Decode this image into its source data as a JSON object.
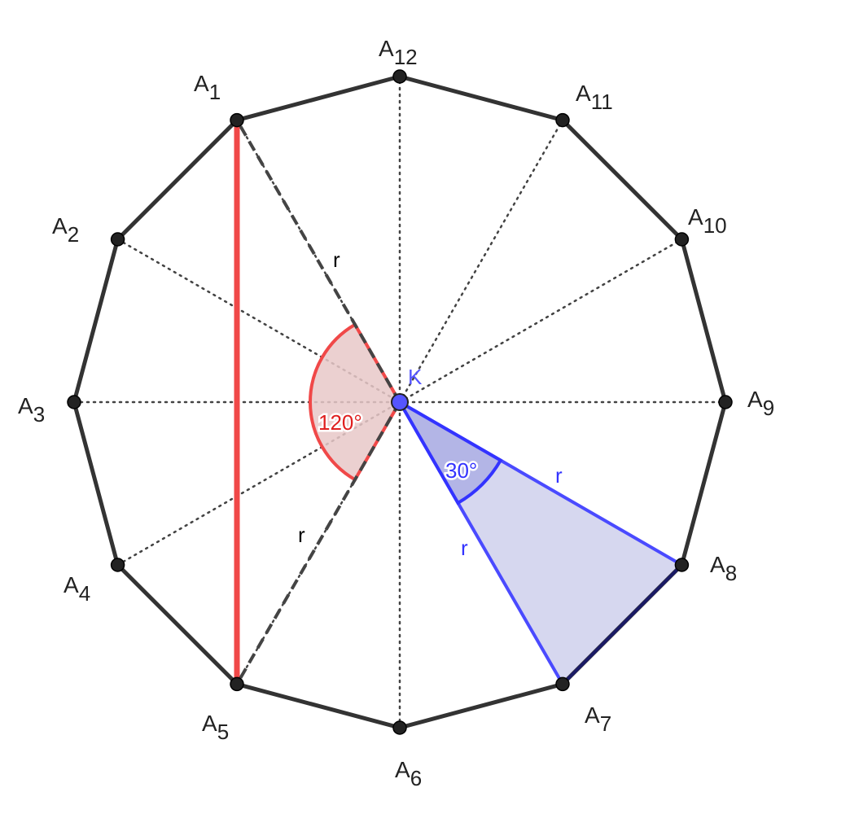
{
  "diagram": {
    "center_label": "K",
    "vertices": [
      {
        "letter": "A",
        "sub": "1"
      },
      {
        "letter": "A",
        "sub": "2"
      },
      {
        "letter": "A",
        "sub": "3"
      },
      {
        "letter": "A",
        "sub": "4"
      },
      {
        "letter": "A",
        "sub": "5"
      },
      {
        "letter": "A",
        "sub": "6"
      },
      {
        "letter": "A",
        "sub": "7"
      },
      {
        "letter": "A",
        "sub": "8"
      },
      {
        "letter": "A",
        "sub": "9"
      },
      {
        "letter": "A",
        "sub": "10"
      },
      {
        "letter": "A",
        "sub": "11"
      },
      {
        "letter": "A",
        "sub": "12"
      }
    ],
    "red_angle_label": "120°",
    "blue_angle_label": "30°",
    "radius_label": "r",
    "colors": {
      "polygon": "#333333",
      "red": "#f04848",
      "red_fill": "#e8c8c8",
      "blue": "#3333ff",
      "blue_fill": "#d6d7ef",
      "center_point": "#5555ff"
    }
  }
}
